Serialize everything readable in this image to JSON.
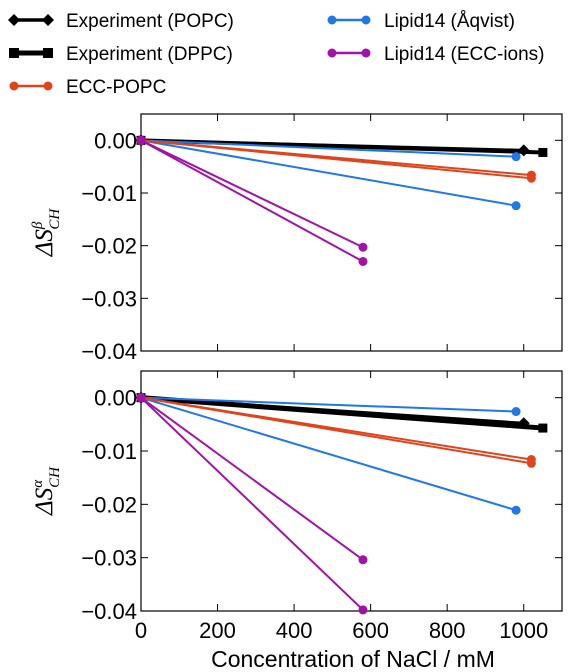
{
  "colors": {
    "experiment": "#000000",
    "ecc_popc": "#e0441c",
    "lipid14_aqvist": "#1f77e8",
    "lipid14_ecc": "#a012a8"
  },
  "legend": [
    {
      "label": "Experiment (POPC)",
      "color": "#000000",
      "marker": "diamond"
    },
    {
      "label": "Experiment (DPPC)",
      "color": "#000000",
      "marker": "square"
    },
    {
      "label": "ECC-POPC",
      "color": "#e0441c",
      "marker": "circle"
    },
    {
      "label": "Lipid14 (Åqvist)",
      "color": "#1f77e8",
      "marker": "circle"
    },
    {
      "label": "Lipid14 (ECC-ions)",
      "color": "#a012a8",
      "marker": "circle"
    }
  ],
  "chart_data": [
    {
      "type": "line",
      "panel": "top",
      "ylabel": {
        "base": "ΔS",
        "sup": "β",
        "sub": "CH"
      },
      "xlabel": "",
      "xlim": [
        0,
        1100
      ],
      "ylim": [
        -0.04,
        0.005
      ],
      "yticks": [
        0.0,
        -0.01,
        -0.02,
        -0.03,
        -0.04
      ],
      "ytick_labels": [
        "0.00",
        "−0.01",
        "−0.02",
        "−0.03",
        "−0.04"
      ],
      "xticks": [
        0,
        200,
        400,
        600,
        800,
        1000
      ],
      "series": [
        {
          "group": "Experiment (DPPC)",
          "color": "#000000",
          "marker": "square",
          "width": 4,
          "x": [
            0,
            1050
          ],
          "y": [
            0,
            -0.0023
          ]
        },
        {
          "group": "Experiment (POPC)",
          "color": "#000000",
          "marker": "diamond",
          "width": 3,
          "x": [
            0,
            1000
          ],
          "y": [
            0,
            -0.0019
          ]
        },
        {
          "group": "Lipid14 (Åqvist)",
          "color": "#1f77e8",
          "marker": "circle",
          "width": 2,
          "x": [
            0,
            980
          ],
          "y": [
            0,
            -0.0031
          ]
        },
        {
          "group": "Lipid14 (Åqvist)",
          "color": "#1f77e8",
          "marker": "circle",
          "width": 2,
          "x": [
            0,
            980
          ],
          "y": [
            0,
            -0.0124
          ]
        },
        {
          "group": "ECC-POPC",
          "color": "#e0441c",
          "marker": "circle",
          "width": 2,
          "x": [
            0,
            1020
          ],
          "y": [
            0,
            -0.0066
          ]
        },
        {
          "group": "ECC-POPC",
          "color": "#e0441c",
          "marker": "circle",
          "width": 2,
          "x": [
            0,
            1020
          ],
          "y": [
            0,
            -0.0072
          ]
        },
        {
          "group": "Lipid14 (ECC-ions)",
          "color": "#a012a8",
          "marker": "circle",
          "width": 2,
          "x": [
            0,
            580
          ],
          "y": [
            0,
            -0.0203
          ]
        },
        {
          "group": "Lipid14 (ECC-ions)",
          "color": "#a012a8",
          "marker": "circle",
          "width": 2,
          "x": [
            0,
            580
          ],
          "y": [
            0,
            -0.023
          ]
        }
      ]
    },
    {
      "type": "line",
      "panel": "bottom",
      "ylabel": {
        "base": "ΔS",
        "sup": "α",
        "sub": "CH"
      },
      "xlabel": "Concentration of NaCl / mM",
      "xlim": [
        0,
        1100
      ],
      "ylim": [
        -0.04,
        0.005
      ],
      "yticks": [
        0.0,
        -0.01,
        -0.02,
        -0.03,
        -0.04
      ],
      "ytick_labels": [
        "0.00",
        "−0.01",
        "−0.02",
        "−0.03",
        "−0.04"
      ],
      "xticks": [
        0,
        200,
        400,
        600,
        800,
        1000
      ],
      "xtick_labels": [
        "0",
        "200",
        "400",
        "600",
        "800",
        "1000"
      ],
      "series": [
        {
          "group": "Experiment (DPPC)",
          "color": "#000000",
          "marker": "square",
          "width": 5,
          "x": [
            0,
            1050
          ],
          "y": [
            0,
            -0.0057
          ]
        },
        {
          "group": "Experiment (POPC)",
          "color": "#000000",
          "marker": "diamond",
          "width": 3,
          "x": [
            0,
            1000
          ],
          "y": [
            0,
            -0.0048
          ]
        },
        {
          "group": "Lipid14 (Åqvist)",
          "color": "#1f77e8",
          "marker": "circle",
          "width": 2,
          "x": [
            0,
            980
          ],
          "y": [
            0,
            -0.0026
          ]
        },
        {
          "group": "Lipid14 (Åqvist)",
          "color": "#1f77e8",
          "marker": "circle",
          "width": 2,
          "x": [
            0,
            980
          ],
          "y": [
            0,
            -0.0211
          ]
        },
        {
          "group": "ECC-POPC",
          "color": "#e0441c",
          "marker": "circle",
          "width": 2,
          "x": [
            0,
            1020
          ],
          "y": [
            0,
            -0.0116
          ]
        },
        {
          "group": "ECC-POPC",
          "color": "#e0441c",
          "marker": "circle",
          "width": 2,
          "x": [
            0,
            1020
          ],
          "y": [
            0,
            -0.0123
          ]
        },
        {
          "group": "Lipid14 (ECC-ions)",
          "color": "#a012a8",
          "marker": "circle",
          "width": 2,
          "x": [
            0,
            580
          ],
          "y": [
            0,
            -0.0304
          ]
        },
        {
          "group": "Lipid14 (ECC-ions)",
          "color": "#a012a8",
          "marker": "circle",
          "width": 2,
          "x": [
            0,
            580
          ],
          "y": [
            0,
            -0.0398
          ]
        }
      ]
    }
  ]
}
